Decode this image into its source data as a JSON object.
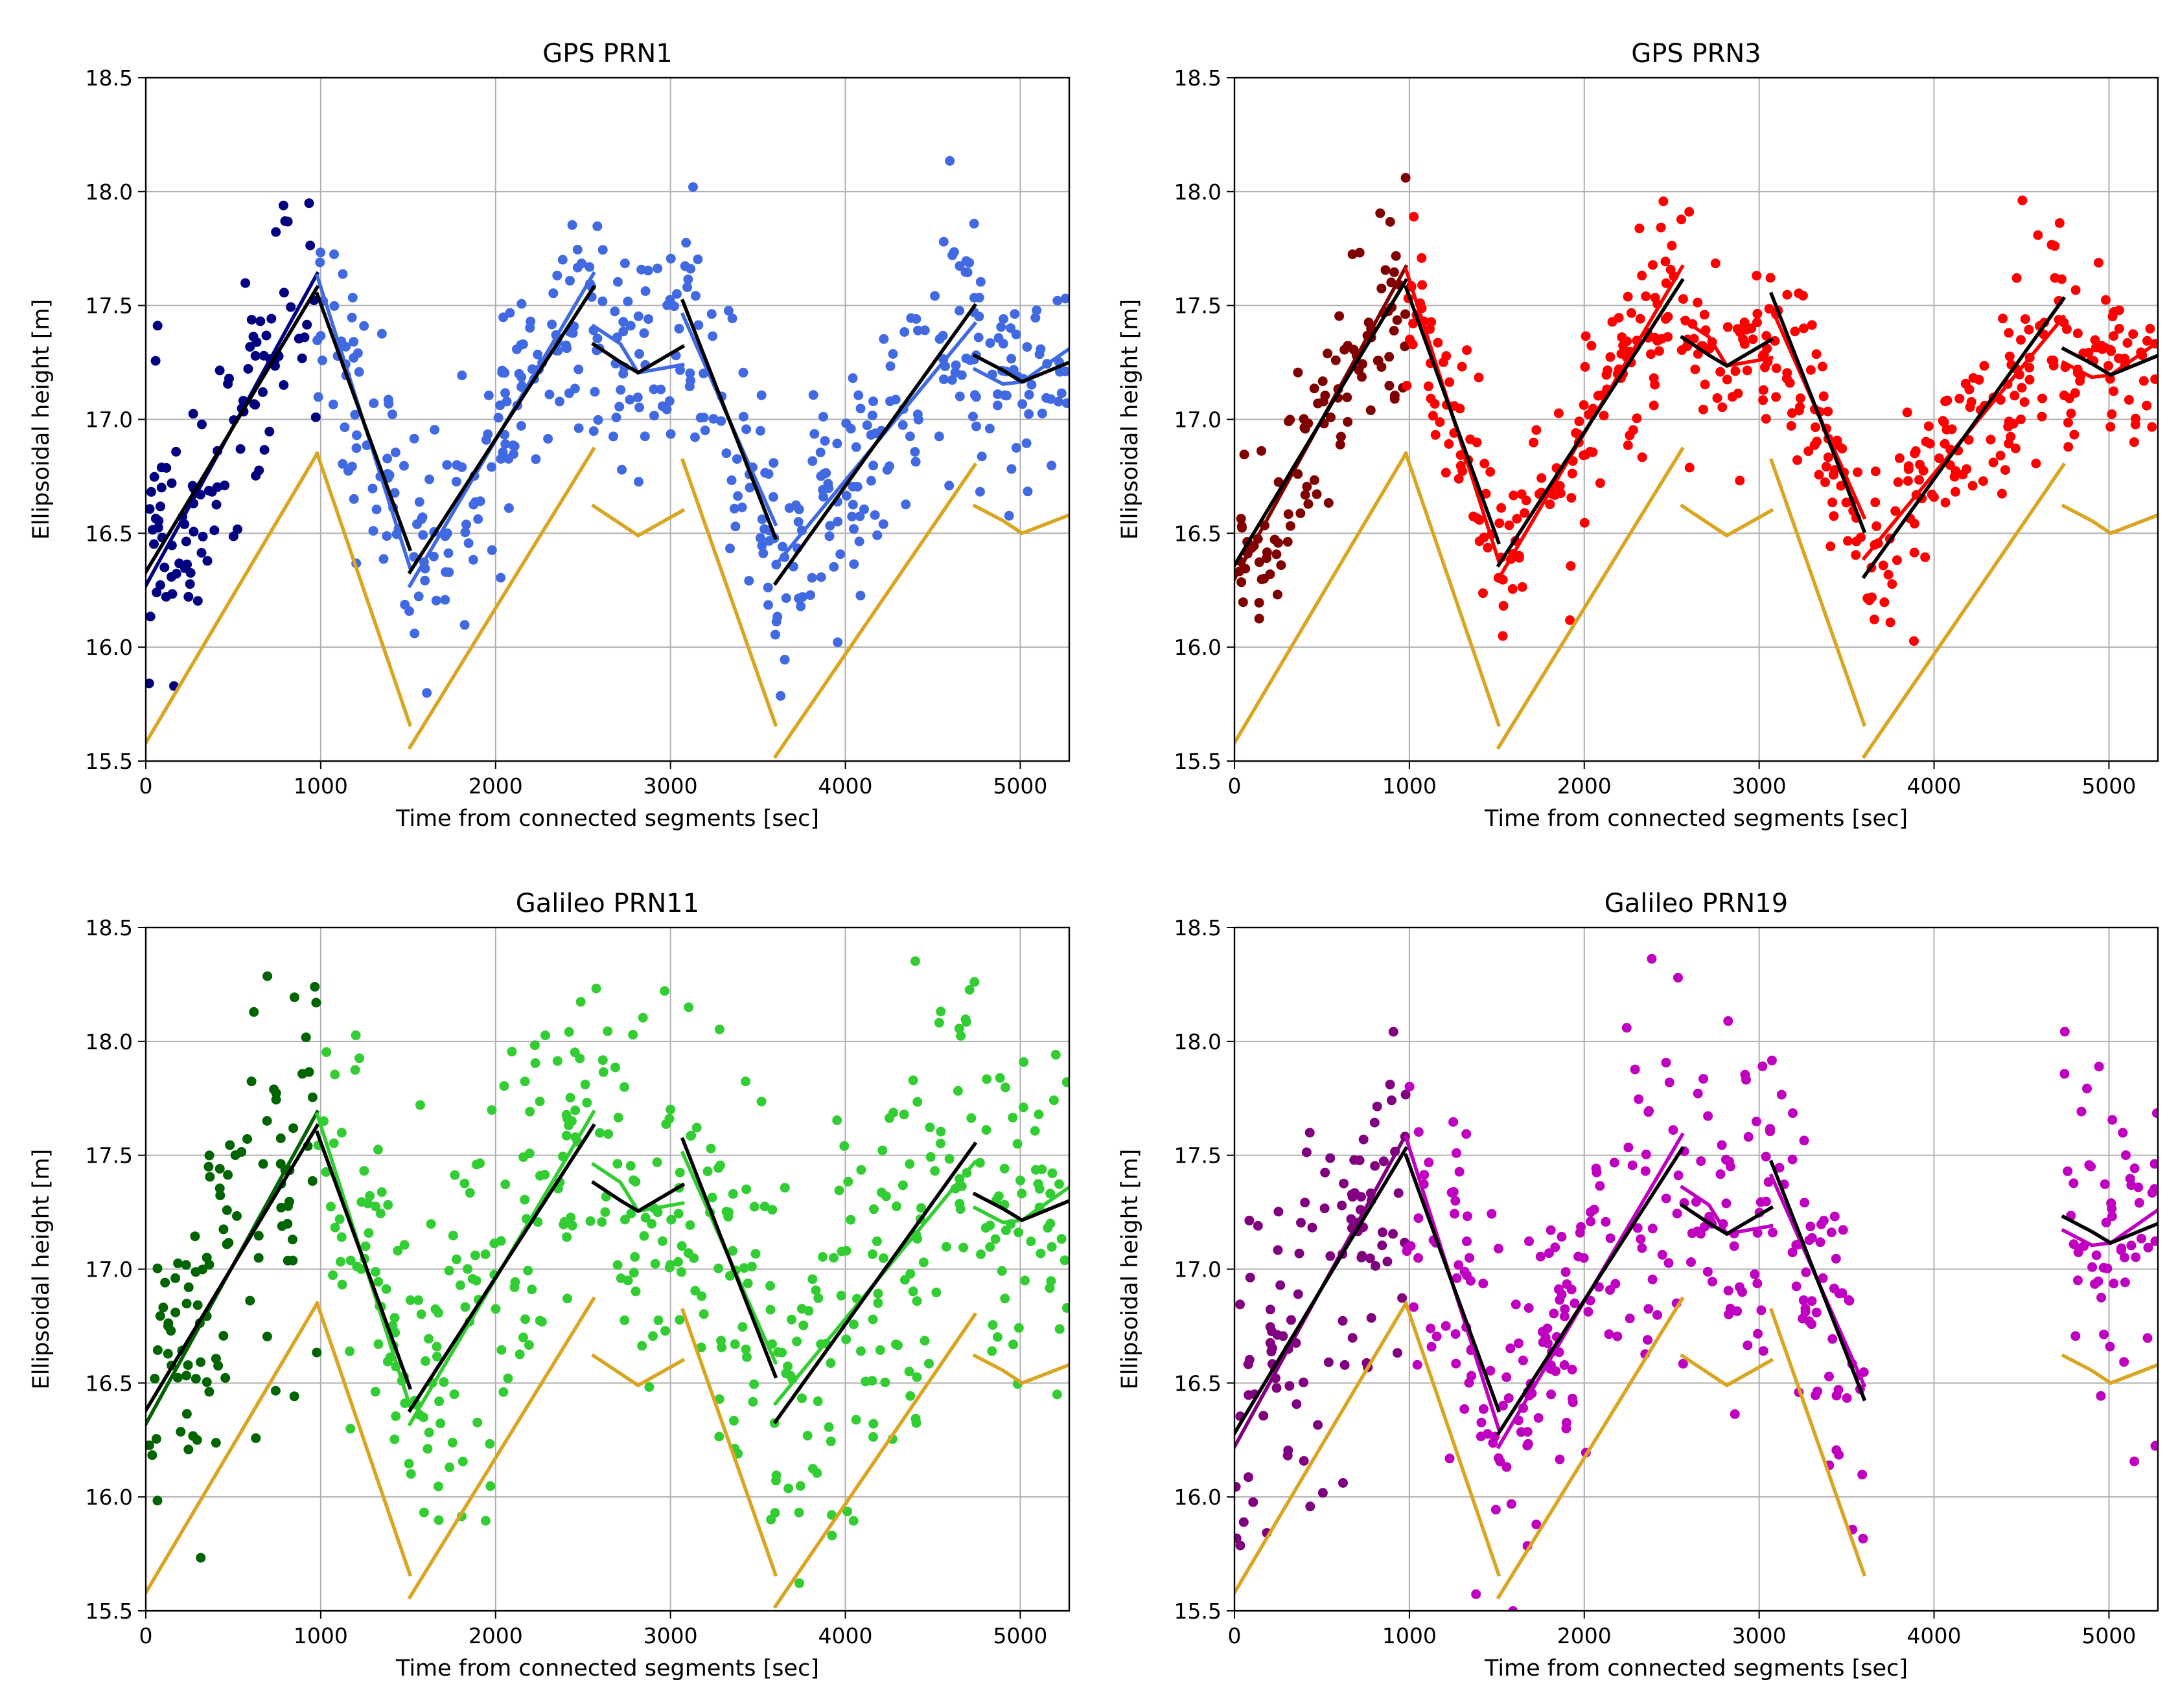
{
  "figure": {
    "background": "#ffffff"
  },
  "chart_data": [
    {
      "type": "scatter",
      "title": "GPS PRN1",
      "xlabel": "Time from connected segments [sec]",
      "ylabel": "Ellipsoidal height [m]",
      "xlim": [
        0,
        5280
      ],
      "ylim": [
        15.5,
        18.5
      ],
      "xticks": [
        "0",
        "1000",
        "2000",
        "3000",
        "4000",
        "5000"
      ],
      "yticks": [
        "15.5",
        "16.0",
        "16.5",
        "17.0",
        "17.5",
        "18.0",
        "18.5"
      ],
      "grid": true,
      "scatter_colors": [
        "#000080",
        "#4169e1"
      ],
      "fit_color": "#4169e1",
      "segment_fit_colors": [
        "#000080",
        "#4169e1",
        "#4169e1",
        "#4169e1",
        "#4169e1",
        "#4169e1"
      ],
      "black_offset": 0.0,
      "gold_offset": -0.72,
      "noise": 0.28,
      "seed": 11
    },
    {
      "type": "scatter",
      "title": "GPS PRN3",
      "xlabel": "Time from connected segments [sec]",
      "ylabel": "Ellipsoidal height [m]",
      "xlim": [
        0,
        5280
      ],
      "ylim": [
        15.5,
        18.5
      ],
      "xticks": [
        "0",
        "1000",
        "2000",
        "3000",
        "4000",
        "5000"
      ],
      "yticks": [
        "15.5",
        "16.0",
        "16.5",
        "17.0",
        "17.5",
        "18.0",
        "18.5"
      ],
      "grid": true,
      "scatter_colors": [
        "#800000",
        "#ff0000"
      ],
      "fit_color": "#ff0000",
      "segment_fit_colors": [
        "#800000",
        "#ff0000",
        "#ff0000",
        "#ff0000",
        "#ff0000",
        "#ff0000"
      ],
      "black_offset": 0.03,
      "gold_offset": -0.68,
      "noise": 0.2,
      "seed": 23
    },
    {
      "type": "scatter",
      "title": "Galileo PRN11",
      "xlabel": "Time from connected segments [sec]",
      "ylabel": "Ellipsoidal height [m]",
      "xlim": [
        0,
        5280
      ],
      "ylim": [
        15.5,
        18.5
      ],
      "xticks": [
        "0",
        "1000",
        "2000",
        "3000",
        "4000",
        "5000"
      ],
      "yticks": [
        "15.5",
        "16.0",
        "16.5",
        "17.0",
        "17.5",
        "18.0",
        "18.5"
      ],
      "grid": true,
      "scatter_colors": [
        "#006400",
        "#32cd32"
      ],
      "fit_color": "#32cd32",
      "segment_fit_colors": [
        "#006400",
        "#32cd32",
        "#32cd32",
        "#32cd32",
        "#32cd32",
        "#32cd32"
      ],
      "black_offset": 0.05,
      "gold_offset": -0.7,
      "noise": 0.42,
      "seed": 37
    },
    {
      "type": "scatter",
      "title": "Galileo PRN19",
      "xlabel": "Time from connected segments [sec]",
      "ylabel": "Ellipsoidal height [m]",
      "xlim": [
        0,
        5280
      ],
      "ylim": [
        15.5,
        18.5
      ],
      "xticks": [
        "0",
        "1000",
        "2000",
        "3000",
        "4000",
        "5000"
      ],
      "yticks": [
        "15.5",
        "16.0",
        "16.5",
        "17.0",
        "17.5",
        "18.0",
        "18.5"
      ],
      "grid": true,
      "scatter_colors": [
        "#800080",
        "#c000c0"
      ],
      "fit_color": "#c000c0",
      "segment_fit_colors": [
        "#800080",
        "#c000c0",
        "#c000c0",
        "#c000c0",
        "#c000c0",
        "#c000c0"
      ],
      "black_offset": -0.05,
      "gold_offset": -0.72,
      "noise": 0.38,
      "seed": 53,
      "missing_segment": [
        3600,
        4740
      ]
    }
  ],
  "segments": [
    {
      "x": [
        0,
        980
      ],
      "y": [
        16.33,
        17.58
      ],
      "gold": [
        15.58,
        16.85
      ]
    },
    {
      "x": [
        980,
        1510
      ],
      "y": [
        17.55,
        16.43
      ],
      "gold": [
        16.85,
        15.66
      ]
    },
    {
      "x": [
        1510,
        2560
      ],
      "y": [
        16.33,
        17.58
      ],
      "gold": [
        15.56,
        16.87
      ]
    },
    {
      "x": [
        2560,
        3070
      ],
      "y": [
        17.33,
        17.32
      ],
      "gold": [
        16.62,
        16.6
      ],
      "dip": 0.12
    },
    {
      "x": [
        3070,
        3600
      ],
      "y": [
        17.52,
        16.48
      ],
      "gold": [
        16.82,
        15.66
      ]
    },
    {
      "x": [
        3600,
        4740
      ],
      "y": [
        16.28,
        17.5
      ],
      "gold": [
        15.52,
        16.8
      ]
    },
    {
      "x": [
        4740,
        5280
      ],
      "y": [
        17.28,
        17.25
      ],
      "gold": [
        16.62,
        16.58
      ],
      "dip": 0.1
    }
  ],
  "colors": {
    "reference_line": "#000000",
    "model_line": "#daa520",
    "grid": "#b0b0b0"
  }
}
